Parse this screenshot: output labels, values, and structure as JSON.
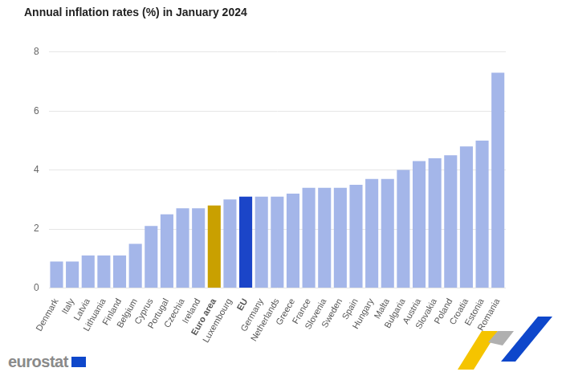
{
  "chart_data": {
    "type": "bar",
    "title": "Annual inflation rates (%) in January 2024",
    "categories": [
      "Denmark",
      "Italy",
      "Latvia",
      "Lithuania",
      "Finland",
      "Belgium",
      "Cyprus",
      "Portugal",
      "Czechia",
      "Ireland",
      "Euro area",
      "Luxembourg",
      "EU",
      "Germany",
      "Netherlands",
      "Greece",
      "France",
      "Slovenia",
      "Sweden",
      "Spain",
      "Hungary",
      "Malta",
      "Bulgaria",
      "Austria",
      "Slovakia",
      "Poland",
      "Croatia",
      "Estonia",
      "Romania"
    ],
    "values": [
      0.9,
      0.9,
      1.1,
      1.1,
      1.1,
      1.5,
      2.1,
      2.5,
      2.7,
      2.7,
      2.8,
      3.0,
      3.1,
      3.1,
      3.1,
      3.2,
      3.4,
      3.4,
      3.4,
      3.5,
      3.7,
      3.7,
      4.0,
      4.3,
      4.4,
      4.5,
      4.8,
      5.0,
      7.3
    ],
    "colors": [
      "#a4b6e9",
      "#a4b6e9",
      "#a4b6e9",
      "#a4b6e9",
      "#a4b6e9",
      "#a4b6e9",
      "#a4b6e9",
      "#a4b6e9",
      "#a4b6e9",
      "#a4b6e9",
      "#c9a000",
      "#a4b6e9",
      "#1b45c8",
      "#a4b6e9",
      "#a4b6e9",
      "#a4b6e9",
      "#a4b6e9",
      "#a4b6e9",
      "#a4b6e9",
      "#a4b6e9",
      "#a4b6e9",
      "#a4b6e9",
      "#a4b6e9",
      "#a4b6e9",
      "#a4b6e9",
      "#a4b6e9",
      "#a4b6e9",
      "#a4b6e9",
      "#a4b6e9"
    ],
    "ylim": [
      0,
      8
    ],
    "yticks": [
      0,
      2,
      4,
      6,
      8
    ],
    "grid": true,
    "annotations": [
      "eurostat"
    ]
  }
}
